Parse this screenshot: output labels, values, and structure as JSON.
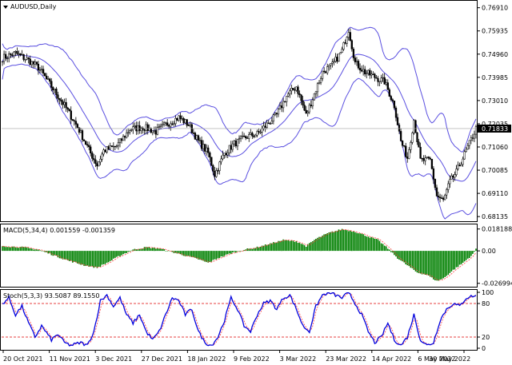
{
  "chart_data": [
    {
      "type": "candlestick",
      "title": "AUDUSD,Daily",
      "symbol": "AUDUSD",
      "timeframe": "Daily",
      "ylim": [
        0.6804,
        0.771
      ],
      "y_ticks": [
        "0.76910",
        "0.75935",
        "0.74960",
        "0.73985",
        "0.73010",
        "0.72035",
        "0.71060",
        "0.70085",
        "0.69110",
        "0.68135"
      ],
      "current_price": "0.71833",
      "x_tick_labels": [
        "20 Oct 2021",
        "11 Nov 2021",
        "3 Dec 2021",
        "27 Dec 2021",
        "18 Jan 2022",
        "9 Feb 2022",
        "3 Mar 2022",
        "23 Mar 2022",
        "14 Apr 2022",
        "6 May 2022",
        "30 May 2022"
      ],
      "bollinger_color": "#5a4fe0",
      "close_keypoints": [
        [
          0,
          0.748
        ],
        [
          8,
          0.75
        ],
        [
          16,
          0.747
        ],
        [
          22,
          0.744
        ],
        [
          30,
          0.736
        ],
        [
          38,
          0.728
        ],
        [
          46,
          0.719
        ],
        [
          54,
          0.708
        ],
        [
          58,
          0.703
        ],
        [
          62,
          0.709
        ],
        [
          70,
          0.711
        ],
        [
          78,
          0.718
        ],
        [
          86,
          0.719
        ],
        [
          94,
          0.717
        ],
        [
          100,
          0.72
        ],
        [
          108,
          0.723
        ],
        [
          114,
          0.72
        ],
        [
          120,
          0.713
        ],
        [
          126,
          0.708
        ],
        [
          130,
          0.699
        ],
        [
          136,
          0.708
        ],
        [
          142,
          0.712
        ],
        [
          150,
          0.715
        ],
        [
          156,
          0.716
        ],
        [
          162,
          0.72
        ],
        [
          168,
          0.724
        ],
        [
          174,
          0.732
        ],
        [
          180,
          0.736
        ],
        [
          186,
          0.724
        ],
        [
          190,
          0.731
        ],
        [
          196,
          0.742
        ],
        [
          202,
          0.745
        ],
        [
          208,
          0.751
        ],
        [
          212,
          0.76
        ],
        [
          216,
          0.746
        ],
        [
          222,
          0.742
        ],
        [
          228,
          0.74
        ],
        [
          234,
          0.738
        ],
        [
          240,
          0.728
        ],
        [
          244,
          0.713
        ],
        [
          248,
          0.706
        ],
        [
          252,
          0.722
        ],
        [
          256,
          0.705
        ],
        [
          262,
          0.705
        ],
        [
          266,
          0.69
        ],
        [
          270,
          0.688
        ],
        [
          274,
          0.696
        ],
        [
          278,
          0.7
        ],
        [
          282,
          0.706
        ],
        [
          286,
          0.712
        ],
        [
          290,
          0.7183
        ]
      ],
      "bars_count": 291
    },
    {
      "type": "histogram",
      "title": "MACD(5,34,4) 0.001559 -0.001359",
      "indicator": "MACD",
      "params": "5,34,4",
      "value_main": "0.001559",
      "value_signal": "-0.001359",
      "ylim": [
        -0.0285,
        0.02
      ],
      "y_ticks": [
        "0.018188",
        "0.00",
        "-0.026994"
      ],
      "bar_color": "#008000",
      "signal_color": "#ff4040",
      "values_keypoints": [
        [
          0,
          0.004
        ],
        [
          12,
          0.003
        ],
        [
          22,
          0.001
        ],
        [
          30,
          -0.003
        ],
        [
          40,
          -0.008
        ],
        [
          50,
          -0.012
        ],
        [
          58,
          -0.014
        ],
        [
          64,
          -0.01
        ],
        [
          72,
          -0.004
        ],
        [
          80,
          0.001
        ],
        [
          88,
          0.003
        ],
        [
          96,
          0.002
        ],
        [
          104,
          -0.001
        ],
        [
          112,
          -0.004
        ],
        [
          120,
          -0.007
        ],
        [
          126,
          -0.01
        ],
        [
          132,
          -0.006
        ],
        [
          140,
          -0.002
        ],
        [
          148,
          0.001
        ],
        [
          156,
          0.003
        ],
        [
          164,
          0.006
        ],
        [
          172,
          0.009
        ],
        [
          180,
          0.008
        ],
        [
          186,
          0.004
        ],
        [
          192,
          0.01
        ],
        [
          200,
          0.015
        ],
        [
          208,
          0.018
        ],
        [
          216,
          0.016
        ],
        [
          224,
          0.012
        ],
        [
          230,
          0.009
        ],
        [
          236,
          0.002
        ],
        [
          242,
          -0.006
        ],
        [
          248,
          -0.012
        ],
        [
          254,
          -0.018
        ],
        [
          260,
          -0.02
        ],
        [
          266,
          -0.025
        ],
        [
          270,
          -0.023
        ],
        [
          276,
          -0.016
        ],
        [
          282,
          -0.01
        ],
        [
          288,
          -0.003
        ],
        [
          290,
          0.0016
        ]
      ]
    },
    {
      "type": "line",
      "title": "Stoch(5,3,3) 93.5087 89.1550",
      "indicator": "Stochastic",
      "params": "5,3,3",
      "value_main": "93.5087",
      "value_signal": "89.1550",
      "ylim": [
        0,
        100
      ],
      "y_ticks": [
        "100",
        "80",
        "20",
        "0"
      ],
      "levels": [
        80,
        20
      ],
      "main_color": "#0000dd",
      "signal_color": "#ff4040",
      "values_keypoints": [
        [
          0,
          80
        ],
        [
          4,
          90
        ],
        [
          8,
          60
        ],
        [
          12,
          75
        ],
        [
          16,
          45
        ],
        [
          20,
          20
        ],
        [
          24,
          40
        ],
        [
          30,
          15
        ],
        [
          34,
          25
        ],
        [
          38,
          10
        ],
        [
          42,
          5
        ],
        [
          48,
          10
        ],
        [
          52,
          5
        ],
        [
          56,
          30
        ],
        [
          60,
          85
        ],
        [
          64,
          95
        ],
        [
          68,
          75
        ],
        [
          72,
          90
        ],
        [
          76,
          60
        ],
        [
          80,
          45
        ],
        [
          84,
          60
        ],
        [
          88,
          30
        ],
        [
          92,
          15
        ],
        [
          96,
          30
        ],
        [
          100,
          60
        ],
        [
          104,
          90
        ],
        [
          108,
          85
        ],
        [
          112,
          60
        ],
        [
          116,
          70
        ],
        [
          120,
          30
        ],
        [
          124,
          10
        ],
        [
          128,
          5
        ],
        [
          132,
          20
        ],
        [
          136,
          50
        ],
        [
          140,
          90
        ],
        [
          144,
          70
        ],
        [
          148,
          40
        ],
        [
          152,
          30
        ],
        [
          156,
          60
        ],
        [
          160,
          80
        ],
        [
          164,
          85
        ],
        [
          168,
          70
        ],
        [
          172,
          90
        ],
        [
          176,
          95
        ],
        [
          180,
          70
        ],
        [
          184,
          40
        ],
        [
          188,
          30
        ],
        [
          192,
          75
        ],
        [
          196,
          95
        ],
        [
          200,
          100
        ],
        [
          204,
          95
        ],
        [
          208,
          90
        ],
        [
          212,
          100
        ],
        [
          216,
          80
        ],
        [
          220,
          60
        ],
        [
          224,
          30
        ],
        [
          228,
          10
        ],
        [
          232,
          20
        ],
        [
          236,
          45
        ],
        [
          240,
          15
        ],
        [
          244,
          5
        ],
        [
          248,
          20
        ],
        [
          252,
          60
        ],
        [
          256,
          15
        ],
        [
          260,
          5
        ],
        [
          264,
          10
        ],
        [
          268,
          50
        ],
        [
          272,
          70
        ],
        [
          276,
          80
        ],
        [
          280,
          75
        ],
        [
          284,
          90
        ],
        [
          288,
          93.5
        ],
        [
          290,
          93.5
        ]
      ]
    }
  ]
}
